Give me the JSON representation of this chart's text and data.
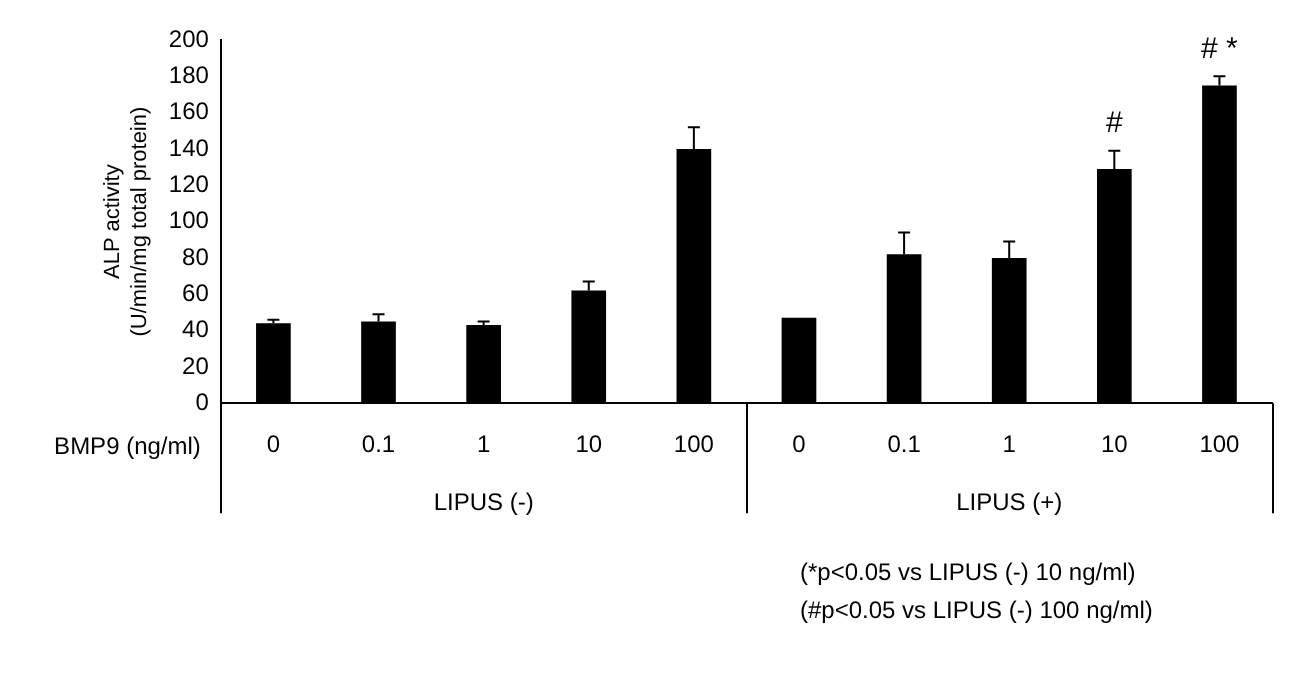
{
  "chart_data": {
    "type": "bar",
    "ylabel": "ALP activity\n(U/min/mg total protein)",
    "xlabel": "BMP9 (ng/ml)",
    "categories": [
      "0",
      "0.1",
      "1",
      "10",
      "100",
      "0",
      "0.1",
      "1",
      "10",
      "100"
    ],
    "values": [
      44,
      45,
      43,
      62,
      140,
      47,
      82,
      80,
      129,
      175
    ],
    "errors": [
      [
        44,
        46
      ],
      [
        45,
        49
      ],
      [
        43,
        45
      ],
      [
        62,
        67
      ],
      [
        140,
        152
      ],
      null,
      [
        82,
        94
      ],
      [
        80,
        89
      ],
      [
        129,
        139
      ],
      [
        175,
        180
      ]
    ],
    "value_labels": [
      null,
      null,
      null,
      null,
      null,
      null,
      null,
      null,
      "#",
      "# *"
    ],
    "color": "#000000",
    "ylim": [
      0,
      200
    ],
    "yticks": [
      0,
      20,
      40,
      60,
      80,
      100,
      120,
      140,
      160,
      180,
      200
    ],
    "grid": false,
    "legend": false,
    "annotations": [
      "LIPUS (-)",
      "LIPUS (+)",
      "(*p<0.05 vs LIPUS (-) 10 ng/ml)",
      "(#p<0.05 vs LIPUS (-) 100 ng/ml)"
    ]
  }
}
